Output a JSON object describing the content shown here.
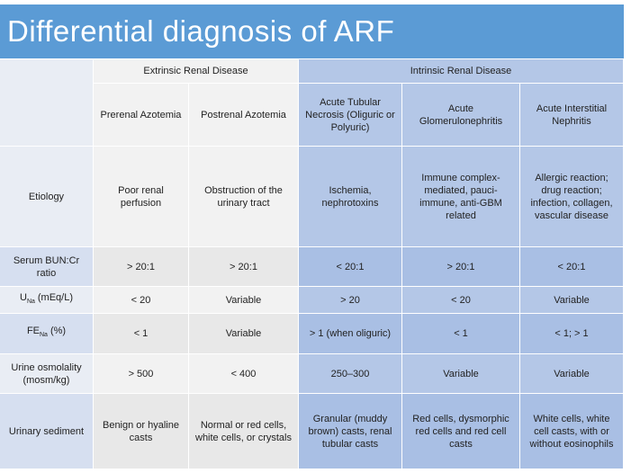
{
  "title": "Differential diagnosis of ARF",
  "table": {
    "groups": [
      "Extrinsic Renal Disease",
      "Intrinsic Renal Disease"
    ],
    "columns": [
      "Prerenal Azotemia",
      "Postrenal Azotemia",
      "Acute Tubular Necrosis (Oliguric or Polyuric)",
      "Acute Glomerulonephritis",
      "Acute Interstitial Nephritis"
    ],
    "rows": [
      {
        "label": "Etiology",
        "cells": [
          "Poor renal perfusion",
          "Obstruction of the urinary tract",
          "Ischemia, nephrotoxins",
          "Immune complex-mediated, pauci-immune, anti-GBM related",
          "Allergic reaction; drug reaction; infection, collagen, vascular disease"
        ]
      },
      {
        "label": "Serum BUN:Cr ratio",
        "cells": [
          "> 20:1",
          "> 20:1",
          "< 20:1",
          "> 20:1",
          "< 20:1"
        ]
      },
      {
        "label_parts": [
          "U",
          "Na",
          "(mEq/L)"
        ],
        "cells": [
          "< 20",
          "Variable",
          "> 20",
          "< 20",
          "Variable"
        ]
      },
      {
        "label_parts": [
          "FE",
          "Na",
          "(%)"
        ],
        "cells": [
          "< 1",
          "Variable",
          "> 1 (when oliguric)",
          "< 1",
          "< 1; > 1"
        ]
      },
      {
        "label": "Urine osmolality (mosm/kg)",
        "cells": [
          "> 500",
          "< 400",
          "250–300",
          "Variable",
          "Variable"
        ]
      },
      {
        "label": "Urinary sediment",
        "cells": [
          "Benign or hyaline casts",
          "Normal or red cells, white cells, or crystals",
          "Granular (muddy brown) casts, renal tubular casts",
          "Red cells, dysmorphic red cells and red cell casts",
          "White cells, white cell casts, with or without eosinophils"
        ]
      }
    ]
  }
}
